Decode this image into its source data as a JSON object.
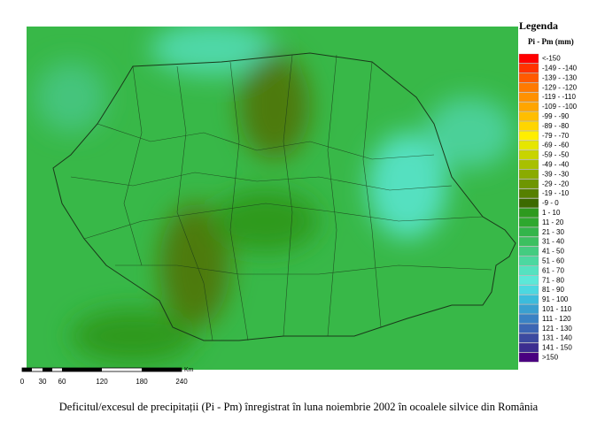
{
  "legend": {
    "title": "Legenda",
    "subtitle": "Pi - Pm (mm)",
    "items": [
      {
        "label": "<-150",
        "color": "#ff0000"
      },
      {
        "label": "-149 - -140",
        "color": "#ff3300"
      },
      {
        "label": "-139 - -130",
        "color": "#ff5a00"
      },
      {
        "label": "-129 - -120",
        "color": "#ff7a00"
      },
      {
        "label": "-119 - -110",
        "color": "#ff9100"
      },
      {
        "label": "-109 - -100",
        "color": "#ffa500"
      },
      {
        "label": "-99 - -90",
        "color": "#ffbe00"
      },
      {
        "label": "-89 - -80",
        "color": "#ffd500"
      },
      {
        "label": "-79 - -70",
        "color": "#ffee00"
      },
      {
        "label": "-69 - -60",
        "color": "#e6e600"
      },
      {
        "label": "-59 - -50",
        "color": "#c8d400"
      },
      {
        "label": "-49 - -40",
        "color": "#a8c000"
      },
      {
        "label": "-39 - -30",
        "color": "#8aab00"
      },
      {
        "label": "-29 - -20",
        "color": "#6e9600"
      },
      {
        "label": "-19 - -10",
        "color": "#568000"
      },
      {
        "label": "-9 - 0",
        "color": "#3c6a00"
      },
      {
        "label": "1 - 10",
        "color": "#2e9a1e"
      },
      {
        "label": "11 - 20",
        "color": "#2ea82e"
      },
      {
        "label": "21 - 30",
        "color": "#33b54a"
      },
      {
        "label": "31 - 40",
        "color": "#3cc060"
      },
      {
        "label": "41 - 50",
        "color": "#44cc80"
      },
      {
        "label": "51 - 60",
        "color": "#4cd8a0"
      },
      {
        "label": "61 - 70",
        "color": "#55e2c0"
      },
      {
        "label": "71 - 80",
        "color": "#5ce8d8"
      },
      {
        "label": "81 - 90",
        "color": "#4cd8e0"
      },
      {
        "label": "91 - 100",
        "color": "#3cbcdc"
      },
      {
        "label": "101 - 110",
        "color": "#3aa0d0"
      },
      {
        "label": "111 - 120",
        "color": "#3a82c4"
      },
      {
        "label": "121 - 130",
        "color": "#3c66b4"
      },
      {
        "label": "131 - 140",
        "color": "#3c4aa0"
      },
      {
        "label": "141 - 150",
        "color": "#3c2e90"
      },
      {
        "label": ">150",
        "color": "#4a0080"
      }
    ]
  },
  "scale_bar": {
    "ticks": [
      "0",
      "30",
      "60",
      "120",
      "180",
      "240"
    ],
    "unit": "Km"
  },
  "caption": "Deficitul/excesul de precipitații (Pi - Pm) înregistrat în luna noiembrie 2002 în ocoalele silvice din România"
}
